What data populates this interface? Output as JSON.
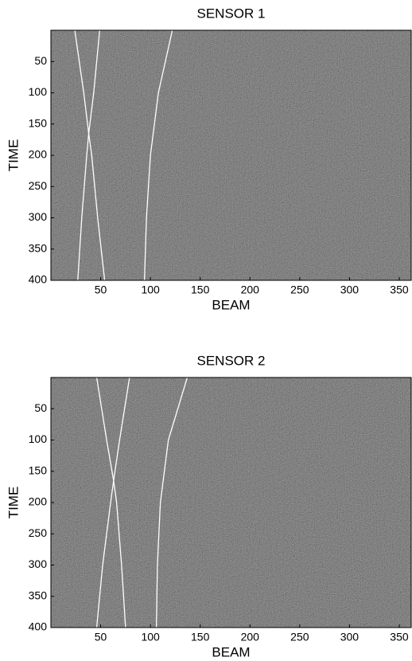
{
  "chart_data": [
    {
      "type": "line",
      "title": "SENSOR 1",
      "x_label": "BEAM",
      "y_label": "TIME",
      "xlim": [
        0,
        362
      ],
      "ylim": [
        400,
        0
      ],
      "y_inverted": true,
      "xticks": [
        50,
        100,
        150,
        200,
        250,
        300,
        350
      ],
      "yticks": [
        50,
        100,
        150,
        200,
        250,
        300,
        350,
        400
      ],
      "series": [
        {
          "color": "#ffffff",
          "x": [
            24,
            33,
            38,
            41,
            47,
            54
          ],
          "values": [
            0,
            100,
            165,
            200,
            300,
            400
          ]
        },
        {
          "color": "#ffffff",
          "x": [
            49,
            43,
            38,
            36,
            31,
            27
          ],
          "values": [
            0,
            100,
            165,
            200,
            300,
            400
          ]
        },
        {
          "color": "#ffffff",
          "x": [
            122,
            108,
            100,
            96,
            94
          ],
          "values": [
            0,
            100,
            200,
            300,
            400
          ]
        }
      ]
    },
    {
      "type": "line",
      "title": "SENSOR 2",
      "x_label": "BEAM",
      "y_label": "TIME",
      "xlim": [
        0,
        362
      ],
      "ylim": [
        400,
        0
      ],
      "y_inverted": true,
      "xticks": [
        50,
        100,
        150,
        200,
        250,
        300,
        350
      ],
      "yticks": [
        50,
        100,
        150,
        200,
        250,
        300,
        350,
        400
      ],
      "series": [
        {
          "color": "#ffffff",
          "x": [
            46,
            56,
            63,
            66,
            71,
            75
          ],
          "values": [
            0,
            100,
            165,
            200,
            300,
            400
          ]
        },
        {
          "color": "#ffffff",
          "x": [
            79,
            69,
            63,
            60,
            52,
            46
          ],
          "values": [
            0,
            100,
            165,
            200,
            300,
            400
          ]
        },
        {
          "color": "#ffffff",
          "x": [
            137,
            118,
            110,
            107,
            106
          ],
          "values": [
            0,
            100,
            200,
            300,
            400
          ]
        }
      ]
    }
  ]
}
